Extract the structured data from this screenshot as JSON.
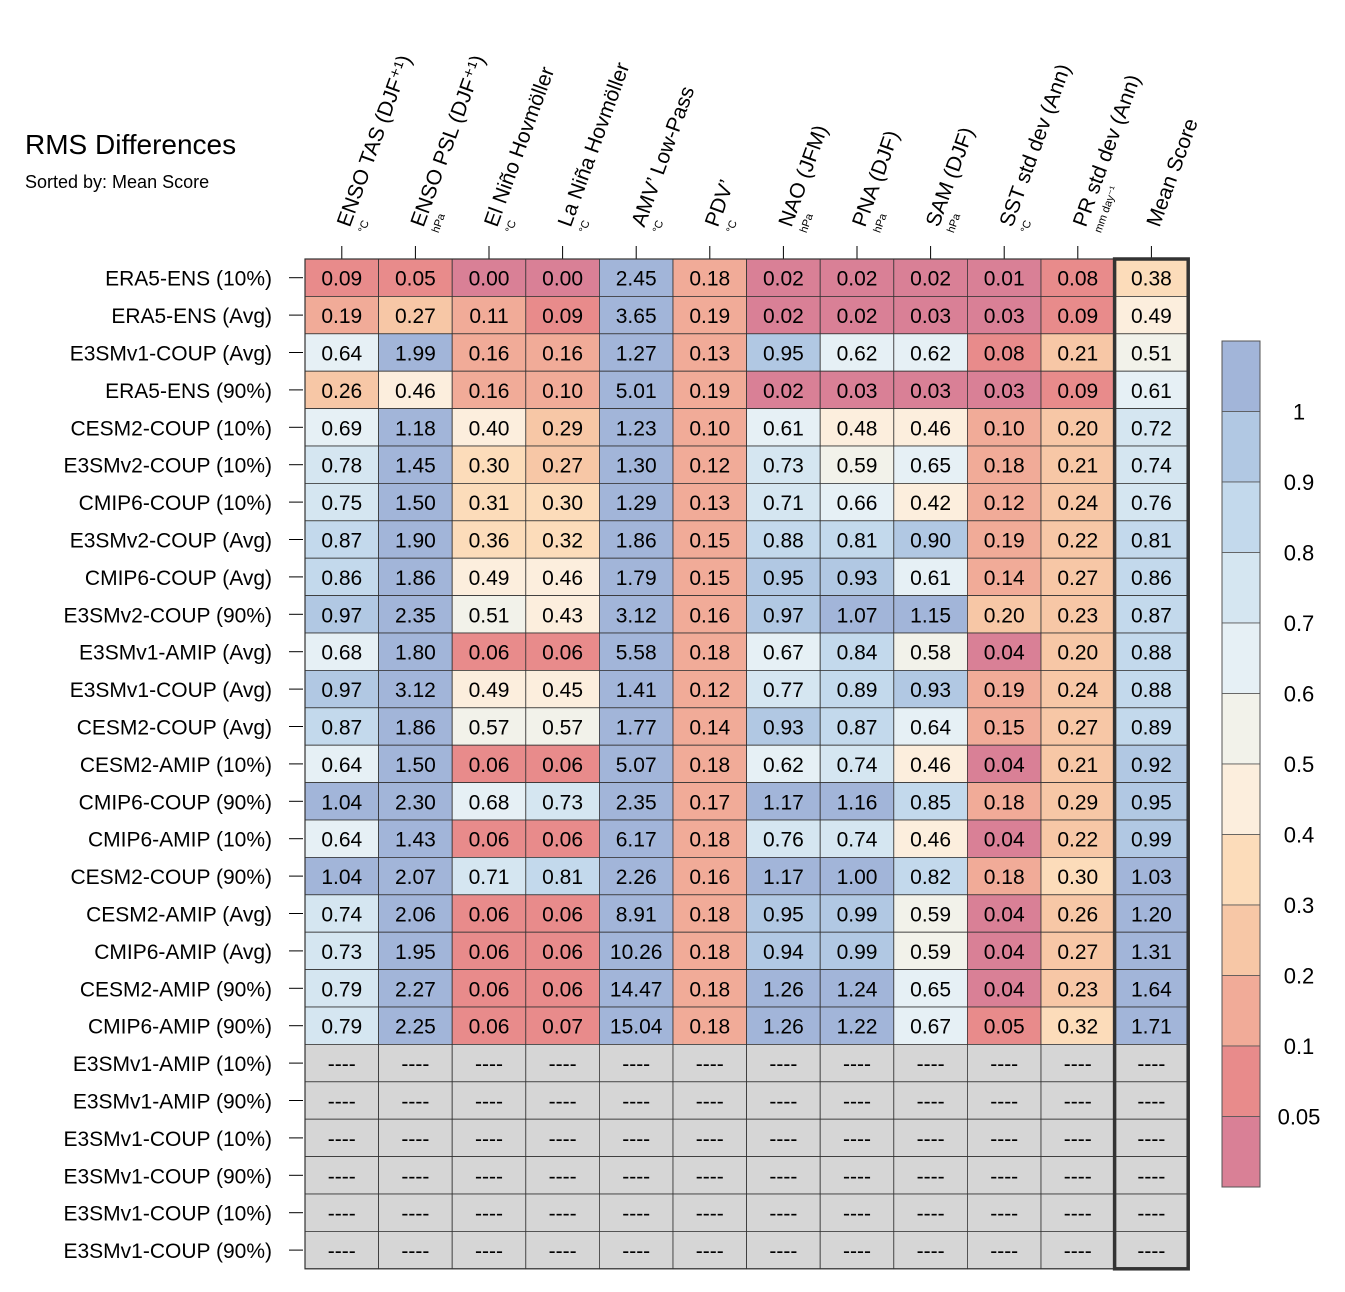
{
  "title": "RMS Differences",
  "subtitle": "Sorted by: Mean Score",
  "chart_data": {
    "type": "heatmap",
    "title": "RMS Differences",
    "subtitle": "Sorted by: Mean Score",
    "columns": [
      {
        "label": "ENSO TAS (DJF⁺¹)",
        "unit": "°C"
      },
      {
        "label": "ENSO PSL (DJF⁺¹)",
        "unit": "hPa"
      },
      {
        "label": "El Niño Hovmöller",
        "unit": "°C"
      },
      {
        "label": "La Niña Hovmöller",
        "unit": "°C"
      },
      {
        "label": "AMV’ Low-Pass",
        "unit": "°C"
      },
      {
        "label": "PDV’",
        "unit": "°C"
      },
      {
        "label": "NAO (JFM)",
        "unit": "hPa"
      },
      {
        "label": "PNA (DJF)",
        "unit": "hPa"
      },
      {
        "label": "SAM (DJF)",
        "unit": "hPa"
      },
      {
        "label": "SST std dev (Ann)",
        "unit": "°C"
      },
      {
        "label": "PR std dev (Ann)",
        "unit": "mm day⁻¹"
      },
      {
        "label": "Mean Score",
        "unit": ""
      }
    ],
    "rows": [
      {
        "label": "ERA5-ENS (10%)",
        "values": [
          0.09,
          0.05,
          0.0,
          0.0,
          2.45,
          0.18,
          0.02,
          0.02,
          0.02,
          0.01,
          0.08,
          0.38
        ]
      },
      {
        "label": "ERA5-ENS (Avg)",
        "values": [
          0.19,
          0.27,
          0.11,
          0.09,
          3.65,
          0.19,
          0.02,
          0.02,
          0.03,
          0.03,
          0.09,
          0.49
        ]
      },
      {
        "label": "E3SMv1-COUP (Avg)",
        "values": [
          0.64,
          1.99,
          0.16,
          0.16,
          1.27,
          0.13,
          0.95,
          0.62,
          0.62,
          0.08,
          0.21,
          0.51
        ]
      },
      {
        "label": "ERA5-ENS (90%)",
        "values": [
          0.26,
          0.46,
          0.16,
          0.1,
          5.01,
          0.19,
          0.02,
          0.03,
          0.03,
          0.03,
          0.09,
          0.61
        ]
      },
      {
        "label": "CESM2-COUP (10%)",
        "values": [
          0.69,
          1.18,
          0.4,
          0.29,
          1.23,
          0.1,
          0.61,
          0.48,
          0.46,
          0.1,
          0.2,
          0.72
        ]
      },
      {
        "label": "E3SMv2-COUP (10%)",
        "values": [
          0.78,
          1.45,
          0.3,
          0.27,
          1.3,
          0.12,
          0.73,
          0.59,
          0.65,
          0.18,
          0.21,
          0.74
        ]
      },
      {
        "label": "CMIP6-COUP (10%)",
        "values": [
          0.75,
          1.5,
          0.31,
          0.3,
          1.29,
          0.13,
          0.71,
          0.66,
          0.42,
          0.12,
          0.24,
          0.76
        ]
      },
      {
        "label": "E3SMv2-COUP (Avg)",
        "values": [
          0.87,
          1.9,
          0.36,
          0.32,
          1.86,
          0.15,
          0.88,
          0.81,
          0.9,
          0.19,
          0.22,
          0.81
        ]
      },
      {
        "label": "CMIP6-COUP (Avg)",
        "values": [
          0.86,
          1.86,
          0.49,
          0.46,
          1.79,
          0.15,
          0.95,
          0.93,
          0.61,
          0.14,
          0.27,
          0.86
        ]
      },
      {
        "label": "E3SMv2-COUP (90%)",
        "values": [
          0.97,
          2.35,
          0.51,
          0.43,
          3.12,
          0.16,
          0.97,
          1.07,
          1.15,
          0.2,
          0.23,
          0.87
        ]
      },
      {
        "label": "E3SMv1-AMIP (Avg)",
        "values": [
          0.68,
          1.8,
          0.06,
          0.06,
          5.58,
          0.18,
          0.67,
          0.84,
          0.58,
          0.04,
          0.2,
          0.88
        ]
      },
      {
        "label": "E3SMv1-COUP (Avg)",
        "values": [
          0.97,
          3.12,
          0.49,
          0.45,
          1.41,
          0.12,
          0.77,
          0.89,
          0.93,
          0.19,
          0.24,
          0.88
        ]
      },
      {
        "label": "CESM2-COUP (Avg)",
        "values": [
          0.87,
          1.86,
          0.57,
          0.57,
          1.77,
          0.14,
          0.93,
          0.87,
          0.64,
          0.15,
          0.27,
          0.89
        ]
      },
      {
        "label": "CESM2-AMIP (10%)",
        "values": [
          0.64,
          1.5,
          0.06,
          0.06,
          5.07,
          0.18,
          0.62,
          0.74,
          0.46,
          0.04,
          0.21,
          0.92
        ]
      },
      {
        "label": "CMIP6-COUP (90%)",
        "values": [
          1.04,
          2.3,
          0.68,
          0.73,
          2.35,
          0.17,
          1.17,
          1.16,
          0.85,
          0.18,
          0.29,
          0.95
        ]
      },
      {
        "label": "CMIP6-AMIP (10%)",
        "values": [
          0.64,
          1.43,
          0.06,
          0.06,
          6.17,
          0.18,
          0.76,
          0.74,
          0.46,
          0.04,
          0.22,
          0.99
        ]
      },
      {
        "label": "CESM2-COUP (90%)",
        "values": [
          1.04,
          2.07,
          0.71,
          0.81,
          2.26,
          0.16,
          1.17,
          1.0,
          0.82,
          0.18,
          0.3,
          1.03
        ]
      },
      {
        "label": "CESM2-AMIP (Avg)",
        "values": [
          0.74,
          2.06,
          0.06,
          0.06,
          8.91,
          0.18,
          0.95,
          0.99,
          0.59,
          0.04,
          0.26,
          1.2
        ]
      },
      {
        "label": "CMIP6-AMIP (Avg)",
        "values": [
          0.73,
          1.95,
          0.06,
          0.06,
          10.26,
          0.18,
          0.94,
          0.99,
          0.59,
          0.04,
          0.27,
          1.31
        ]
      },
      {
        "label": "CESM2-AMIP (90%)",
        "values": [
          0.79,
          2.27,
          0.06,
          0.06,
          14.47,
          0.18,
          1.26,
          1.24,
          0.65,
          0.04,
          0.23,
          1.64
        ]
      },
      {
        "label": "CMIP6-AMIP (90%)",
        "values": [
          0.79,
          2.25,
          0.06,
          0.07,
          15.04,
          0.18,
          1.26,
          1.22,
          0.67,
          0.05,
          0.32,
          1.71
        ]
      },
      {
        "label": "E3SMv1-AMIP (10%)",
        "values": [
          null,
          null,
          null,
          null,
          null,
          null,
          null,
          null,
          null,
          null,
          null,
          null
        ]
      },
      {
        "label": "E3SMv1-AMIP (90%)",
        "values": [
          null,
          null,
          null,
          null,
          null,
          null,
          null,
          null,
          null,
          null,
          null,
          null
        ]
      },
      {
        "label": "E3SMv1-COUP (10%)",
        "values": [
          null,
          null,
          null,
          null,
          null,
          null,
          null,
          null,
          null,
          null,
          null,
          null
        ]
      },
      {
        "label": "E3SMv1-COUP (90%)",
        "values": [
          null,
          null,
          null,
          null,
          null,
          null,
          null,
          null,
          null,
          null,
          null,
          null
        ]
      },
      {
        "label": "E3SMv1-COUP (10%)",
        "values": [
          null,
          null,
          null,
          null,
          null,
          null,
          null,
          null,
          null,
          null,
          null,
          null
        ]
      },
      {
        "label": "E3SMv1-COUP (90%)",
        "values": [
          null,
          null,
          null,
          null,
          null,
          null,
          null,
          null,
          null,
          null,
          null,
          null
        ]
      }
    ],
    "missing_text": "----",
    "colorbar": {
      "ticks": [
        "1",
        "0.9",
        "0.8",
        "0.7",
        "0.6",
        "0.5",
        "0.4",
        "0.3",
        "0.2",
        "0.1",
        "0.05"
      ],
      "colors": [
        "#a2b5d9",
        "#b1c8e3",
        "#c3d9ec",
        "#d5e6f1",
        "#e6f0f5",
        "#f2f2ea",
        "#fceedd",
        "#fcdcba",
        "#f7c7a6",
        "#f1ab98",
        "#e88b8b",
        "#d98096"
      ]
    },
    "highlight_column": "Mean Score"
  }
}
